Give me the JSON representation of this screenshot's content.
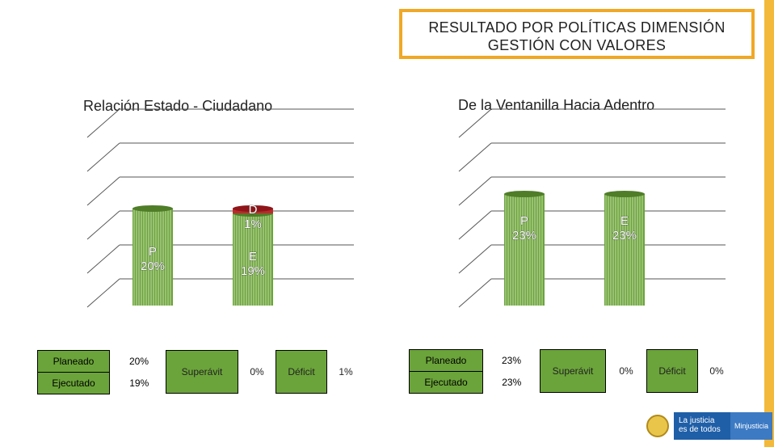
{
  "header": {
    "title_line1": "RESULTADO POR POLÍTICAS DIMENSIÓN",
    "title_line2": "GESTIÓN CON VALORES"
  },
  "colors": {
    "accent_orange": "#f0a825",
    "bar_green": "#6ba43a",
    "deficit_red": "#c0272d",
    "logo_blue": "#1f5fa8"
  },
  "chart_data": [
    {
      "type": "bar",
      "title": "Relación Estado - Ciudadano",
      "categories": [
        "P",
        "E"
      ],
      "values": [
        20,
        19
      ],
      "deficit": 1,
      "labels": {
        "P": "P\n20%",
        "E": "E\n19%",
        "D": "D\n1%"
      },
      "unit": "%",
      "ylim": [
        0,
        35
      ],
      "grid": true,
      "table": {
        "planeado_label": "Planeado",
        "planeado_value": "20%",
        "ejecutado_label": "Ejecutado",
        "ejecutado_value": "19%",
        "superavit_label": "Superávit",
        "superavit_value": "0%",
        "deficit_label": "Déficit",
        "deficit_value": "1%"
      }
    },
    {
      "type": "bar",
      "title": "De la Ventanilla Hacia Adentro",
      "categories": [
        "P",
        "E"
      ],
      "values": [
        23,
        23
      ],
      "deficit": 0,
      "labels": {
        "P": "P\n23%",
        "E": "E\n23%"
      },
      "unit": "%",
      "ylim": [
        0,
        35
      ],
      "grid": true,
      "table": {
        "planeado_label": "Planeado",
        "planeado_value": "23%",
        "ejecutado_label": "Ejecutado",
        "ejecutado_value": "23%",
        "superavit_label": "Superávit",
        "superavit_value": "0%",
        "deficit_label": "Déficit",
        "deficit_value": "0%"
      }
    }
  ],
  "logo": {
    "text_line1": "La justicia",
    "text_line2": "es de todos",
    "ministry": "Minjusticia"
  }
}
